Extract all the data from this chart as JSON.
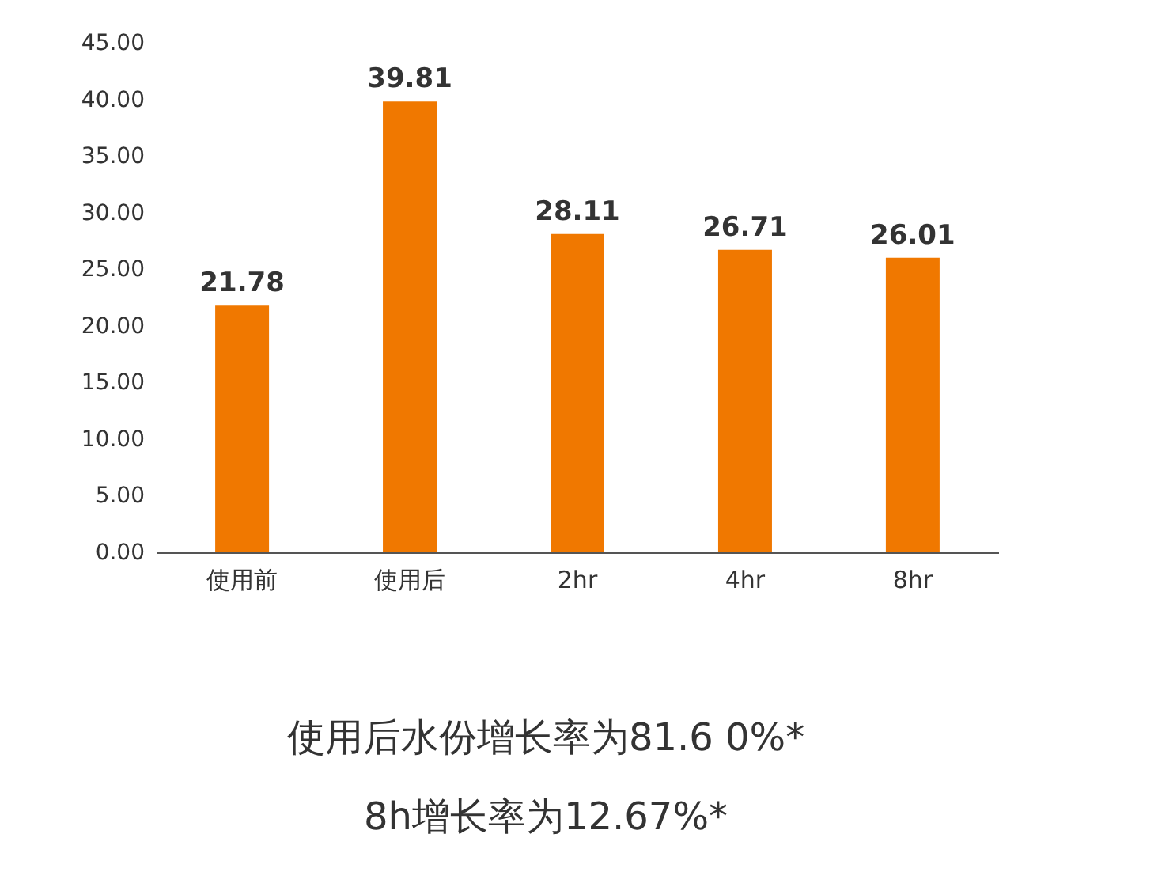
{
  "chart_data": {
    "type": "bar",
    "categories": [
      "使用前",
      "使用后",
      "2hr",
      "4hr",
      "8hr"
    ],
    "values": [
      21.78,
      39.81,
      28.11,
      26.71,
      26.01
    ],
    "color": "#f07800",
    "ylim": [
      0,
      45
    ],
    "yticks": [
      {
        "value": 0,
        "label": "0.00"
      },
      {
        "value": 5,
        "label": "5.00"
      },
      {
        "value": 10,
        "label": "10.00"
      },
      {
        "value": 15,
        "label": "15.00"
      },
      {
        "value": 20,
        "label": "20.00"
      },
      {
        "value": 25,
        "label": "25.00"
      },
      {
        "value": 30,
        "label": "30.00"
      },
      {
        "value": 35,
        "label": "35.00"
      },
      {
        "value": 40,
        "label": "40.00"
      },
      {
        "value": 45,
        "label": "45.00"
      }
    ],
    "data_labels": true,
    "grid": false,
    "annotations": [
      "使用后水份增长率为81.6 0%*",
      "8h增长率为12.67%*"
    ]
  }
}
